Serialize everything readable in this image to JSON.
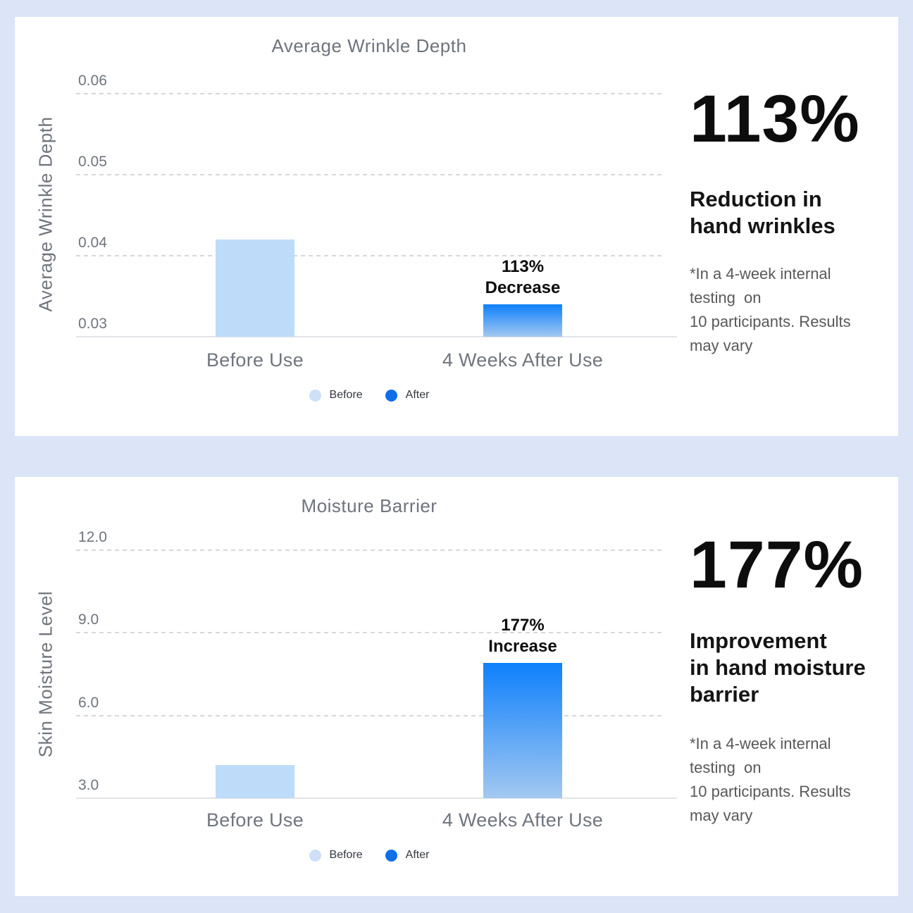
{
  "colors": {
    "background": "#dce4f7",
    "card": "#ffffff",
    "before_bar": "#bedcfa",
    "after_bar_gradient_top": "#0e80fc",
    "after_bar_gradient_bottom": "#a3c8f0",
    "legend_before_dot": "#cde0f8",
    "legend_after_dot": "#0e6fe9"
  },
  "chart_data": [
    {
      "type": "bar",
      "title": "Average Wrinkle Depth",
      "ylabel": "Average Wrinkle Depth",
      "xlabel": "",
      "categories": [
        "Before Use",
        "4 Weeks After Use"
      ],
      "values": [
        0.042,
        0.034
      ],
      "bar_fills": [
        {
          "solid": "#bedcfa"
        },
        {
          "gradient_top": "#0e80fc",
          "gradient_bottom": "#a3c8f0"
        }
      ],
      "annotations": [
        null,
        "113%\nDecrease"
      ],
      "ylim": [
        0.03,
        0.06
      ],
      "yticks": [
        {
          "value": 0.06,
          "label": "0.06"
        },
        {
          "value": 0.05,
          "label": "0.05"
        },
        {
          "value": 0.04,
          "label": "0.04"
        },
        {
          "value": 0.03,
          "label": "0.03"
        }
      ],
      "grid": "horizontal-dashed",
      "legend": {
        "position": "bottom-center",
        "items": [
          {
            "label": "Before",
            "dot_color": "#cde0f8"
          },
          {
            "label": "After",
            "dot_color": "#0e6fe9"
          }
        ]
      },
      "stat": {
        "value": "113%",
        "heading": "Reduction in\nhand wrinkles",
        "footnote": "*In a 4-week internal\ntesting  on\n10 participants. Results\nmay vary"
      }
    },
    {
      "type": "bar",
      "title": "Moisture Barrier",
      "ylabel": "Skin Moisture Level",
      "xlabel": "",
      "categories": [
        "Before Use",
        "4 Weeks After Use"
      ],
      "values": [
        4.2,
        7.9
      ],
      "bar_fills": [
        {
          "solid": "#bedcfa"
        },
        {
          "gradient_top": "#0e80fc",
          "gradient_bottom": "#a3c8f0"
        }
      ],
      "annotations": [
        null,
        "177%\nIncrease"
      ],
      "ylim": [
        3.0,
        12.0
      ],
      "yticks": [
        {
          "value": 12.0,
          "label": "12.0"
        },
        {
          "value": 9.0,
          "label": "9.0"
        },
        {
          "value": 6.0,
          "label": "6.0"
        },
        {
          "value": 3.0,
          "label": "3.0"
        }
      ],
      "grid": "horizontal-dashed",
      "legend": {
        "position": "bottom-center",
        "items": [
          {
            "label": "Before",
            "dot_color": "#cde0f8"
          },
          {
            "label": "After",
            "dot_color": "#0e6fe9"
          }
        ]
      },
      "stat": {
        "value": "177%",
        "heading": "Improvement\nin hand moisture\nbarrier",
        "footnote": "*In a 4-week internal\ntesting  on\n10 participants. Results\nmay vary"
      }
    }
  ]
}
